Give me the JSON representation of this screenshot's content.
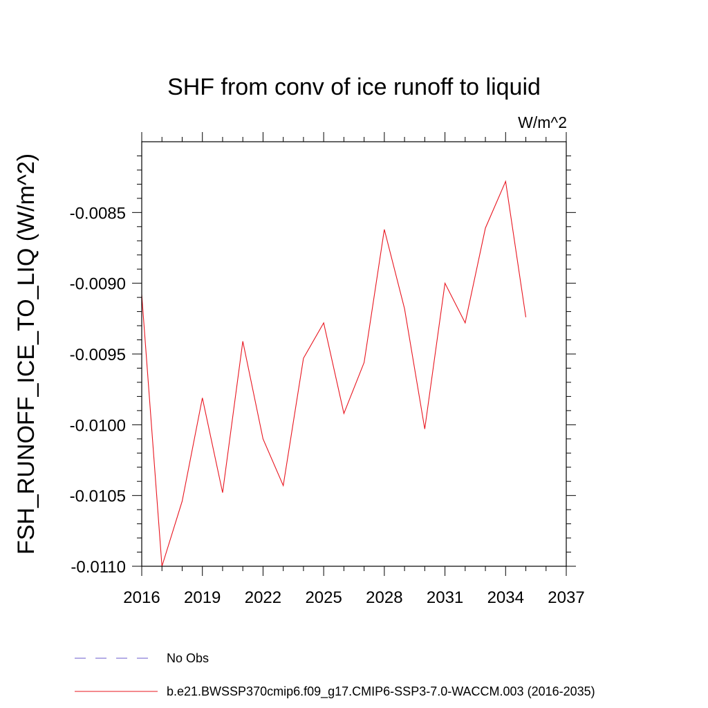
{
  "chart_data": {
    "type": "line",
    "title": "SHF from conv of ice runoff to liquid",
    "units": "W/m^2",
    "ylabel": "FSH_RUNOFF_ICE_TO_LIQ  (W/m^2)",
    "xlabel": "",
    "xlim": [
      2016,
      2037
    ],
    "ylim": [
      -0.011,
      -0.008
    ],
    "x_ticks": [
      2016,
      2019,
      2022,
      2025,
      2028,
      2031,
      2034,
      2037
    ],
    "x_tick_labels": [
      "2016",
      "2019",
      "2022",
      "2025",
      "2028",
      "2031",
      "2034",
      "2037"
    ],
    "y_ticks": [
      -0.0085,
      -0.009,
      -0.0095,
      -0.01,
      -0.0105,
      -0.011
    ],
    "y_tick_labels": [
      "-0.0085",
      "-0.0090",
      "-0.0095",
      "-0.0100",
      "-0.0105",
      "-0.0110"
    ],
    "grid": false,
    "legend_position": "bottom-left",
    "series": [
      {
        "name": "b.e21.BWSSP370cmip6.f09_g17.CMIP6-SSP3-7.0-WACCM.003 (2016-2035)",
        "color": "#e8141e",
        "style": "solid",
        "x": [
          2016,
          2017,
          2018,
          2019,
          2020,
          2021,
          2022,
          2023,
          2024,
          2025,
          2026,
          2027,
          2028,
          2029,
          2030,
          2031,
          2032,
          2033,
          2034,
          2035
        ],
        "values": [
          -0.00908,
          -0.011,
          -0.01054,
          -0.00981,
          -0.01048,
          -0.00941,
          -0.0101,
          -0.01043,
          -0.00953,
          -0.00928,
          -0.00992,
          -0.00956,
          -0.00862,
          -0.00918,
          -0.01003,
          -0.009,
          -0.00928,
          -0.00861,
          -0.00828,
          -0.00924
        ]
      }
    ],
    "legend": [
      {
        "label": "No Obs",
        "color": "#6a5acd",
        "style": "dashed"
      },
      {
        "label": "b.e21.BWSSP370cmip6.f09_g17.CMIP6-SSP3-7.0-WACCM.003 (2016-2035)",
        "color": "#e8141e",
        "style": "solid"
      }
    ]
  }
}
